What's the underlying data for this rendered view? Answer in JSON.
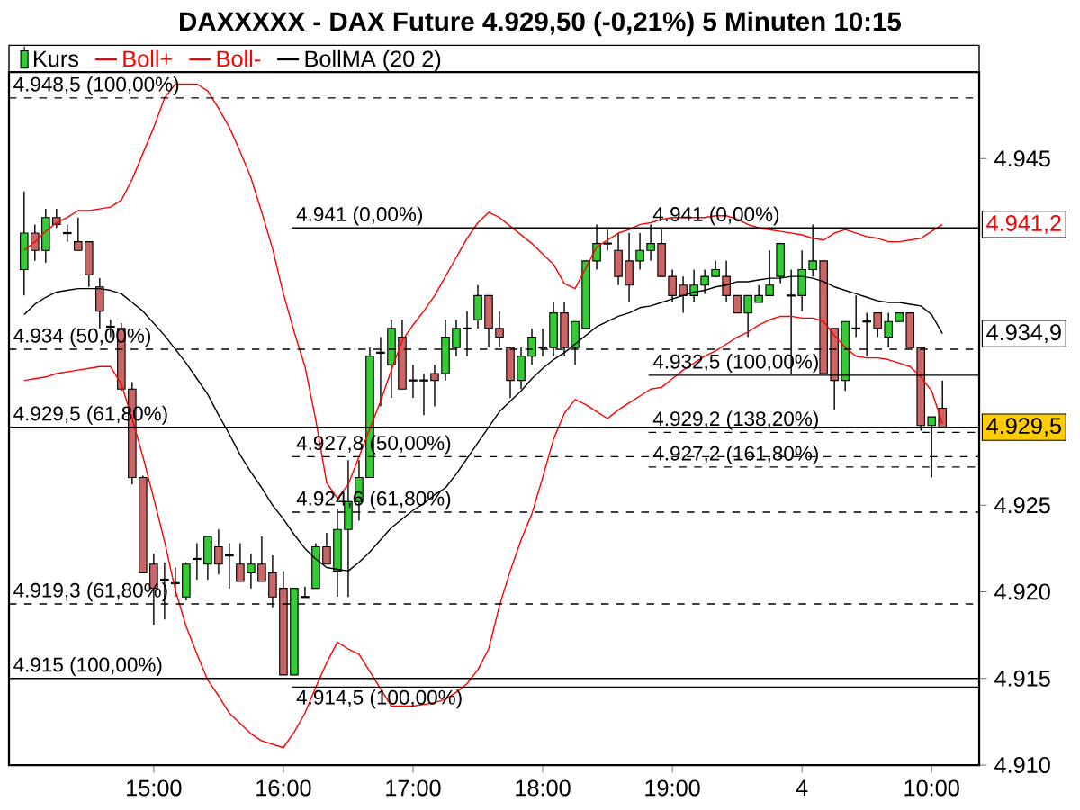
{
  "chart_data": {
    "type": "candlestick",
    "title": "DAXXXXX - DAX Future 4.929,50 (-0,21%) 5 Minuten 10:15",
    "categories": [
      null,
      null,
      null,
      null,
      null,
      null,
      null,
      null,
      null,
      null,
      null,
      null,
      "15:00",
      null,
      null,
      null,
      null,
      null,
      null,
      null,
      null,
      null,
      null,
      null,
      "16:00",
      null,
      null,
      null,
      null,
      null,
      null,
      null,
      null,
      null,
      null,
      null,
      "17:00",
      null,
      null,
      null,
      null,
      null,
      null,
      null,
      null,
      null,
      null,
      null,
      "18:00",
      null,
      null,
      null,
      null,
      null,
      null,
      null,
      null,
      null,
      null,
      null,
      "19:00",
      null,
      null,
      null,
      null,
      null,
      null,
      null,
      null,
      null,
      null,
      null,
      "4",
      null,
      null,
      null,
      null,
      null,
      null,
      null,
      null,
      null,
      null,
      null,
      "10:00",
      null
    ],
    "series": [
      {
        "name": "Kurs",
        "type": "candlestick",
        "color": "#000000",
        "ohlc": [
          [
            4938.6,
            4943.1,
            4937.1,
            4940.7
          ],
          [
            4940.7,
            4941.2,
            4939.1,
            4939.7
          ],
          [
            4939.7,
            4942.1,
            4939.0,
            4941.6
          ],
          [
            4941.6,
            4942.1,
            4941.0,
            4941.2
          ],
          [
            4940.7,
            4941.2,
            4940.2,
            4940.7
          ],
          [
            4940.2,
            4941.6,
            4939.7,
            4939.7
          ],
          [
            4940.2,
            4940.2,
            4937.6,
            4938.3
          ],
          [
            4937.6,
            4938.1,
            4935.2,
            4936.2
          ],
          [
            4935.3,
            4935.7,
            4934.7,
            4935.3
          ],
          [
            4935.2,
            4935.5,
            4931.6,
            4931.7
          ],
          [
            4931.7,
            4932.1,
            4926.2,
            4926.6
          ],
          [
            4926.6,
            4926.7,
            4921.1,
            4921.1
          ],
          [
            4921.6,
            4922.2,
            4918.1,
            4920.2
          ],
          [
            4920.7,
            4921.7,
            4918.4,
            4920.7
          ],
          [
            4920.5,
            4921.4,
            4919.7,
            4920.5
          ],
          [
            4919.7,
            4921.7,
            4919.5,
            4921.6
          ],
          [
            4921.9,
            4922.8,
            4920.7,
            4921.9
          ],
          [
            4921.6,
            4923.2,
            4920.7,
            4923.2
          ],
          [
            4922.6,
            4923.6,
            4921.0,
            4921.6
          ],
          [
            4922.1,
            4922.8,
            4920.2,
            4922.1
          ],
          [
            4921.6,
            4922.8,
            4920.6,
            4920.6
          ],
          [
            4921.1,
            4922.2,
            4920.2,
            4921.6
          ],
          [
            4921.6,
            4923.2,
            4920.6,
            4920.6
          ],
          [
            4921.1,
            4922.1,
            4919.1,
            4919.7
          ],
          [
            4920.2,
            4921.2,
            4915.2,
            4915.2
          ],
          [
            4915.2,
            4920.2,
            4915.2,
            4920.2
          ],
          [
            4919.7,
            4920.3,
            4919.7,
            4919.7
          ],
          [
            4920.2,
            4922.8,
            4920.2,
            4922.6
          ],
          [
            4922.6,
            4923.4,
            4921.6,
            4921.6
          ],
          [
            4921.2,
            4924.8,
            4919.7,
            4923.6
          ],
          [
            4923.6,
            4927.6,
            4919.7,
            4925.2
          ],
          [
            4925.2,
            4927.6,
            4924.1,
            4926.6
          ],
          [
            4926.6,
            4934.1,
            4926.6,
            4933.6
          ],
          [
            4933.8,
            4934.7,
            4930.7,
            4933.8
          ],
          [
            4933.1,
            4935.7,
            4931.2,
            4935.2
          ],
          [
            4934.7,
            4935.7,
            4931.7,
            4931.7
          ],
          [
            4932.2,
            4933.1,
            4931.2,
            4932.2
          ],
          [
            4932.2,
            4932.6,
            4930.2,
            4932.2
          ],
          [
            4932.6,
            4933.1,
            4930.7,
            4932.2
          ],
          [
            4932.6,
            4935.7,
            4932.2,
            4934.7
          ],
          [
            4934.1,
            4935.7,
            4933.6,
            4935.2
          ],
          [
            4935.2,
            4936.2,
            4933.6,
            4935.2
          ],
          [
            4935.7,
            4937.7,
            4935.2,
            4937.1
          ],
          [
            4937.1,
            4937.1,
            4934.1,
            4935.2
          ],
          [
            4935.2,
            4936.2,
            4934.1,
            4934.7
          ],
          [
            4934.1,
            4934.1,
            4931.2,
            4932.2
          ],
          [
            4932.2,
            4934.1,
            4931.7,
            4933.6
          ],
          [
            4933.6,
            4935.2,
            4933.1,
            4934.7
          ],
          [
            4934.1,
            4935.2,
            4933.6,
            4934.1
          ],
          [
            4934.1,
            4936.7,
            4933.6,
            4936.1
          ],
          [
            4936.1,
            4936.7,
            4933.6,
            4934.1
          ],
          [
            4934.1,
            4935.6,
            4933.1,
            4935.6
          ],
          [
            4935.2,
            4939.1,
            4935.2,
            4939.1
          ],
          [
            4939.1,
            4941.2,
            4938.6,
            4940.1
          ],
          [
            4940.1,
            4940.9,
            4939.7,
            4940.1
          ],
          [
            4939.7,
            4940.7,
            4937.7,
            4938.2
          ],
          [
            4939.1,
            4940.7,
            4936.7,
            4937.7
          ],
          [
            4939.1,
            4940.7,
            4938.6,
            4939.7
          ],
          [
            4939.7,
            4941.2,
            4939.1,
            4940.1
          ],
          [
            4940.1,
            4940.9,
            4938.2,
            4938.2
          ],
          [
            4938.2,
            4938.6,
            4936.7,
            4937.1
          ],
          [
            4937.7,
            4938.2,
            4936.1,
            4937.1
          ],
          [
            4937.1,
            4938.6,
            4936.7,
            4937.7
          ],
          [
            4937.7,
            4938.6,
            4937.2,
            4938.2
          ],
          [
            4938.2,
            4939.1,
            4938.2,
            4938.6
          ],
          [
            4938.2,
            4939.1,
            4936.7,
            4937.1
          ],
          [
            4937.1,
            4937.1,
            4936.1,
            4936.1
          ],
          [
            4936.1,
            4937.1,
            4934.7,
            4937.1
          ],
          [
            4936.7,
            4937.7,
            4936.7,
            4937.1
          ],
          [
            4937.1,
            4939.7,
            4937.1,
            4937.7
          ],
          [
            4938.2,
            4940.1,
            4937.8,
            4940.1
          ],
          [
            4937.1,
            4938.6,
            4932.6,
            4937.1
          ],
          [
            4937.1,
            4939.7,
            4936.2,
            4938.6
          ],
          [
            4938.6,
            4941.2,
            4938.2,
            4939.1
          ],
          [
            4939.1,
            4939.1,
            4932.6,
            4932.6
          ],
          [
            4935.2,
            4935.2,
            4930.5,
            4932.2
          ],
          [
            4932.2,
            4935.6,
            4931.6,
            4935.6
          ],
          [
            4935.2,
            4937.1,
            4934.7,
            4935.2
          ],
          [
            4935.6,
            4936.1,
            4933.6,
            4935.6
          ],
          [
            4936.1,
            4936.1,
            4934.7,
            4935.2
          ],
          [
            4934.7,
            4936.1,
            4934.1,
            4935.6
          ],
          [
            4935.6,
            4936.1,
            4935.6,
            4936.1
          ],
          [
            4936.1,
            4936.1,
            4934.1,
            4934.1
          ],
          [
            4934.1,
            4934.1,
            4929.3,
            4929.6
          ],
          [
            4929.6,
            4930.1,
            4926.6,
            4930.1
          ],
          [
            4930.6,
            4932.2,
            4929.5,
            4929.5
          ]
        ],
        "colors": [
          "#33cc33",
          "#cc6666",
          "#33cc33",
          "#cc6666",
          "#000000",
          "#cc6666",
          "#cc6666",
          "#cc6666",
          "#000000",
          "#cc6666",
          "#cc6666",
          "#cc6666",
          "#cc6666",
          "#000000",
          "#000000",
          "#33cc33",
          "#000000",
          "#33cc33",
          "#cc6666",
          "#000000",
          "#cc6666",
          "#33cc33",
          "#cc6666",
          "#cc6666",
          "#cc6666",
          "#33cc33",
          "#000000",
          "#33cc33",
          "#cc6666",
          "#33cc33",
          "#33cc33",
          "#33cc33",
          "#33cc33",
          "#000000",
          "#33cc33",
          "#cc6666",
          "#000000",
          "#000000",
          "#cc6666",
          "#33cc33",
          "#33cc33",
          "#000000",
          "#33cc33",
          "#cc6666",
          "#cc6666",
          "#cc6666",
          "#33cc33",
          "#33cc33",
          "#000000",
          "#33cc33",
          "#cc6666",
          "#33cc33",
          "#33cc33",
          "#33cc33",
          "#000000",
          "#cc6666",
          "#cc6666",
          "#33cc33",
          "#33cc33",
          "#cc6666",
          "#cc6666",
          "#cc6666",
          "#33cc33",
          "#33cc33",
          "#33cc33",
          "#cc6666",
          "#cc6666",
          "#33cc33",
          "#33cc33",
          "#33cc33",
          "#33cc33",
          "#000000",
          "#33cc33",
          "#33cc33",
          "#cc6666",
          "#cc6666",
          "#33cc33",
          "#000000",
          "#000000",
          "#cc6666",
          "#33cc33",
          "#33cc33",
          "#cc6666",
          "#cc6666",
          "#33cc33",
          "#cc6666"
        ]
      },
      {
        "name": "Boll+",
        "type": "line",
        "color": "#ff0000",
        "values": [
          4939.7,
          4940.2,
          4940.8,
          4941.3,
          4941.6,
          4942.0,
          4942.0,
          4942.1,
          4942.2,
          4942.6,
          4943.8,
          4945.3,
          4946.8,
          4948.5,
          4949.3,
          4949.3,
          4949.3,
          4948.9,
          4947.9,
          4946.8,
          4945.4,
          4943.9,
          4941.9,
          4939.8,
          4937.2,
          4935.0,
          4933.0,
          4929.9,
          4926.3,
          4925.4,
          4926.2,
          4927.8,
          4929.4,
          4931.0,
          4932.8,
          4934.5,
          4935.4,
          4936.2,
          4937.1,
          4938.2,
          4939.3,
          4940.4,
          4941.3,
          4941.9,
          4941.6,
          4941.1,
          4940.6,
          4940.1,
          4939.5,
          4938.9,
          4937.8,
          4937.5,
          4938.7,
          4939.9,
          4940.3,
          4940.7,
          4940.9,
          4941.2,
          4941.3,
          4941.5,
          4941.6,
          4941.6,
          4941.6,
          4941.6,
          4941.7,
          4941.7,
          4941.5,
          4941.2,
          4941.0,
          4940.9,
          4940.8,
          4940.7,
          4940.6,
          4940.4,
          4940.3,
          4940.7,
          4940.9,
          4940.7,
          4940.5,
          4940.4,
          4940.2,
          4940.2,
          4940.3,
          4940.4,
          4940.8,
          4941.2
        ]
      },
      {
        "name": "Boll-",
        "type": "line",
        "color": "#ff0000",
        "values": [
          4932.2,
          4932.3,
          4932.4,
          4932.6,
          4932.7,
          4932.8,
          4932.9,
          4933.0,
          4933.0,
          4932.0,
          4930.0,
          4927.8,
          4925.4,
          4922.9,
          4920.1,
          4918.0,
          4916.4,
          4914.9,
          4914.0,
          4913.0,
          4912.4,
          4911.8,
          4911.4,
          4911.2,
          4911.0,
          4911.9,
          4913.0,
          4914.5,
          4915.9,
          4917.1,
          4916.7,
          4916.4,
          4915.4,
          4914.4,
          4913.4,
          4913.4,
          4913.4,
          4913.5,
          4913.6,
          4913.8,
          4914.2,
          4914.7,
          4915.5,
          4916.7,
          4919.2,
          4921.2,
          4923.0,
          4924.5,
          4926.6,
          4928.8,
          4930.3,
          4931.1,
          4930.8,
          4930.4,
          4930.0,
          4930.5,
          4930.9,
          4931.3,
          4931.7,
          4931.8,
          4932.3,
          4932.8,
          4933.2,
          4933.6,
          4933.9,
          4934.3,
          4934.7,
          4935.0,
          4935.4,
          4935.7,
          4935.9,
          4935.9,
          4935.8,
          4935.8,
          4935.6,
          4934.8,
          4934.1,
          4933.6,
          4933.5,
          4933.5,
          4933.4,
          4933.2,
          4933.0,
          4932.4,
          4931.6,
          4929.7
        ]
      },
      {
        "name": "BollMA (20 2)",
        "type": "line",
        "color": "#000000",
        "values": [
          4936.0,
          4936.6,
          4937.0,
          4937.3,
          4937.4,
          4937.5,
          4937.5,
          4937.5,
          4937.4,
          4937.2,
          4936.7,
          4936.2,
          4935.5,
          4934.8,
          4934.0,
          4933.2,
          4932.3,
          4931.4,
          4930.2,
          4929.1,
          4927.9,
          4926.9,
          4926.0,
          4925.0,
          4924.2,
          4923.3,
          4922.5,
          4921.9,
          4921.4,
          4921.3,
          4921.2,
          4921.7,
          4922.3,
          4923.0,
          4923.7,
          4924.2,
          4924.7,
          4925.1,
          4925.6,
          4926.0,
          4926.8,
          4927.7,
          4928.6,
          4929.5,
          4930.4,
          4931.0,
          4931.6,
          4932.3,
          4932.9,
          4933.4,
          4933.8,
          4934.3,
          4934.8,
          4935.3,
          4935.6,
          4935.9,
          4936.1,
          4936.4,
          4936.5,
          4936.7,
          4936.9,
          4937.1,
          4937.3,
          4937.4,
          4937.6,
          4937.7,
          4937.9,
          4937.9,
          4938.0,
          4938.1,
          4938.1,
          4938.2,
          4938.2,
          4938.1,
          4937.9,
          4937.6,
          4937.4,
          4937.2,
          4937.0,
          4936.8,
          4936.7,
          4936.7,
          4936.6,
          4936.5,
          4936.0,
          4934.9
        ]
      }
    ],
    "ylim": [
      4910,
      4950
    ],
    "yticks": [
      {
        "value": 4910,
        "label": "4.910"
      },
      {
        "value": 4915,
        "label": "4.915"
      },
      {
        "value": 4920,
        "label": "4.920"
      },
      {
        "value": 4925,
        "label": "4.925"
      },
      {
        "value": 4945,
        "label": "4.945"
      }
    ],
    "ref_lines": [
      {
        "axis": "y",
        "value": 4948.5,
        "label": "4.948,5 (100,00%)",
        "line_style": "dashed"
      },
      {
        "axis": "y",
        "value": 4934,
        "label": "4.934 (50,00%)",
        "line_style": "dashed"
      },
      {
        "axis": "y",
        "value": 4929.5,
        "label": "4.929,5 (61,80%)",
        "line_style": "solid"
      },
      {
        "axis": "y",
        "value": 4919.3,
        "label": "4.919,3 (61,80%)",
        "line_style": "dashed"
      },
      {
        "axis": "y",
        "value": 4915,
        "label": "4.915 (100,00%)",
        "line_style": "solid"
      },
      {
        "axis": "y",
        "value": 4941,
        "label": "4.941 (0,00%)",
        "line_style": "solid"
      },
      {
        "axis": "y",
        "value": 4927.8,
        "label": "4.927,8 (50,00%)",
        "line_style": "dashed"
      },
      {
        "axis": "y",
        "value": 4924.6,
        "label": "4.924,6 (61,80%)",
        "line_style": "dashed"
      },
      {
        "axis": "y",
        "value": 4914.5,
        "label": "4.914,5 (100,00%)",
        "line_style": "solid"
      },
      {
        "axis": "y",
        "value": 4932.5,
        "label": "4.932,5 (100,00%)",
        "line_style": "solid"
      },
      {
        "axis": "y",
        "value": 4929.2,
        "label": "4.929,2 (138,20%)",
        "line_style": "dashed"
      },
      {
        "axis": "y",
        "value": 4927.2,
        "label": "4.927,2 (161,80%)",
        "line_style": "dashed"
      }
    ],
    "annotations": [
      "4.941,2",
      "4.934,9",
      "4.929,5",
      {
        "text": "4.941 (0,00%)",
        "y": 4941
      }
    ],
    "legend": "top"
  }
}
